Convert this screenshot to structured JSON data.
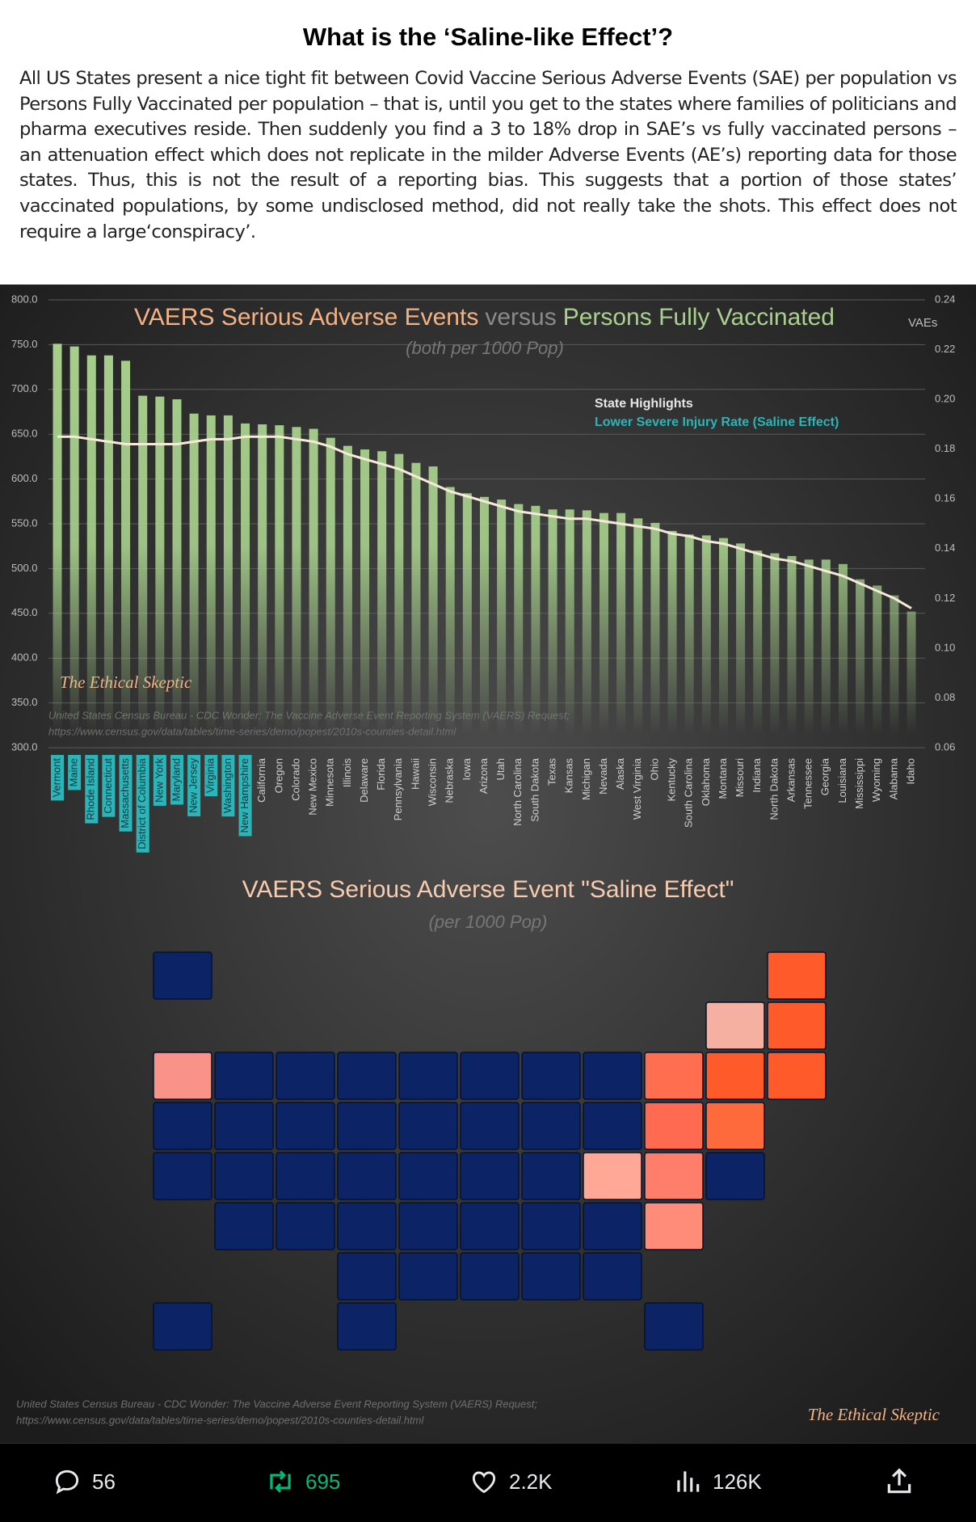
{
  "header": {
    "title": "What is the ‘Saline-like Effect’?",
    "body": "All US States present a nice tight fit between Covid Vaccine Serious Adverse Events (SAE) per population vs Persons Fully Vaccinated per population – that is, until you get to the states where families of politicians and pharma executives reside. Then suddenly you find a 3 to 18% drop in SAE’s vs fully vaccinated persons – an attenuation effect which does not replicate in the milder Adverse Events (AE’s) reporting data for those states. Thus, this is not the result of a reporting bias. This suggests that a portion of those states’ vaccinated populations, by some undisclosed method, did not really take the shots. This effect does not require a large‘conspiracy’."
  },
  "chart_data": [
    {
      "type": "bar_line",
      "title": [
        {
          "text": "VAERS Serious Adverse Events",
          "color": "#f4b183"
        },
        {
          "text": "versus",
          "color": "#8a8a8a"
        },
        {
          "text": "Persons Fully Vaccinated",
          "color": "#a9d18e"
        }
      ],
      "subtitle": "(both per 1000 Pop)",
      "y2label": "VAEs",
      "legend": {
        "title": "State Highlights",
        "entry": "Lower Severe Injury Rate (Saline Effect)"
      },
      "watermark": "The Ethical Skeptic",
      "source": [
        "United States Census Bureau - CDC Wonder: The Vaccine Adverse Event Reporting System (VAERS) Request;",
        "https://www.census.gov/data/tables/time-series/demo/popest/2010s-counties-detail.html"
      ],
      "categories": [
        "Vermont",
        "Maine",
        "Rhode Island",
        "Connecticut",
        "Massachusetts",
        "District of Columbia",
        "New York",
        "Maryland",
        "New Jersey",
        "Virginia",
        "Washington",
        "New Hampshire",
        "California",
        "Oregon",
        "Colorado",
        "New Mexico",
        "Minnesota",
        "Illinois",
        "Delaware",
        "Florida",
        "Pennsylvania",
        "Hawaii",
        "Wisconsin",
        "Nebraska",
        "Iowa",
        "Arizona",
        "Utah",
        "North Carolina",
        "South Dakota",
        "Texas",
        "Kansas",
        "Michigan",
        "Nevada",
        "Alaska",
        "West Virginia",
        "Ohio",
        "Kentucky",
        "South Carolina",
        "Oklahoma",
        "Montana",
        "Missouri",
        "Indiana",
        "North Dakota",
        "Arkansas",
        "Tennessee",
        "Georgia",
        "Louisiana",
        "Mississippi",
        "Wyoming",
        "Alabama",
        "Idaho"
      ],
      "highlighted": [
        true,
        true,
        true,
        true,
        true,
        true,
        true,
        true,
        true,
        true,
        true,
        true,
        false,
        false,
        false,
        false,
        false,
        false,
        false,
        false,
        false,
        false,
        false,
        false,
        false,
        false,
        false,
        false,
        false,
        false,
        false,
        false,
        false,
        false,
        false,
        false,
        false,
        false,
        false,
        false,
        false,
        false,
        false,
        false,
        false,
        false,
        false,
        false,
        false,
        false,
        false
      ],
      "highlight_color": "#2bb5b8",
      "series": [
        {
          "color": "#a9d18e",
          "values": [
            751,
            748,
            738,
            738,
            732,
            693,
            692,
            689,
            673,
            671,
            671,
            662,
            661,
            660,
            658,
            656,
            646,
            637,
            633,
            631,
            628,
            618,
            614,
            591,
            584,
            580,
            577,
            572,
            570,
            566,
            566,
            565,
            562,
            562,
            556,
            551,
            542,
            538,
            537,
            534,
            528,
            520,
            517,
            514,
            510,
            510,
            505,
            488,
            481,
            470,
            452
          ]
        },
        {
          "color": "#f5ead8",
          "axis": "y2",
          "values": [
            0.185,
            0.185,
            0.184,
            0.183,
            0.182,
            0.182,
            0.182,
            0.182,
            0.183,
            0.184,
            0.184,
            0.185,
            0.185,
            0.185,
            0.184,
            0.183,
            0.181,
            0.178,
            0.176,
            0.174,
            0.172,
            0.169,
            0.166,
            0.163,
            0.161,
            0.159,
            0.157,
            0.155,
            0.154,
            0.153,
            0.152,
            0.152,
            0.151,
            0.15,
            0.149,
            0.148,
            0.146,
            0.145,
            0.143,
            0.142,
            0.14,
            0.138,
            0.136,
            0.135,
            0.133,
            0.131,
            0.129,
            0.126,
            0.123,
            0.12,
            0.116
          ]
        }
      ],
      "ylim": [
        300,
        800
      ],
      "yticks": [
        {
          "value": 300,
          "label": "300.0"
        },
        {
          "value": 350,
          "label": "350.0"
        },
        {
          "value": 400,
          "label": "400.0"
        },
        {
          "value": 450,
          "label": "450.0"
        },
        {
          "value": 500,
          "label": "500.0"
        },
        {
          "value": 550,
          "label": "550.0"
        },
        {
          "value": 600,
          "label": "600.0"
        },
        {
          "value": 650,
          "label": "650.0"
        },
        {
          "value": 700,
          "label": "700.0"
        },
        {
          "value": 750,
          "label": "750.0"
        },
        {
          "value": 800,
          "label": "800.0"
        }
      ],
      "y2lim": [
        0.06,
        0.24
      ],
      "y2ticks": [
        0.06,
        0.08,
        {
          "value": 0.1,
          "label": "0.10"
        },
        0.12,
        0.14,
        0.16,
        0.18,
        {
          "value": 0.2,
          "label": "0.20"
        },
        0.22,
        0.24
      ],
      "grid": true
    },
    {
      "type": "map",
      "title": "VAERS Serious Adverse Event \"Saline Effect\"",
      "subtitle": "(per 1000 Pop)",
      "watermark": "The Ethical Skeptic",
      "source": [
        "United States Census Bureau - CDC Wonder: The Vaccine Adverse Event Reporting System (VAERS) Request;",
        "https://www.census.gov/data/tables/time-series/demo/popest/2010s-counties-detail.html"
      ],
      "colors": [
        "#f6b0a2",
        "#ff5a2a",
        "#ff5a2a",
        "#ff6a3d",
        "#ff5a2a",
        "#ff8c78",
        "#ff6f4f",
        "#ff7d6a",
        "#ff6a50",
        "#ffa898",
        "#f99389",
        "#ff5a2a",
        "#0c2466",
        "#0c2466",
        "#0c2466",
        "#0c2466",
        "#0c2466",
        "#0c2466",
        "#0c2466",
        "#0c2466",
        "#0c2466",
        "#0c2466",
        "#0c2466",
        "#0c2466",
        "#0c2466",
        "#0c2466",
        "#0c2466",
        "#0c2466",
        "#0c2466",
        "#0c2466",
        "#0c2466",
        "#0c2466",
        "#0c2466",
        "#0c2466",
        "#0c2466",
        "#0c2466",
        "#0c2466",
        "#0c2466",
        "#0c2466",
        "#0c2466",
        "#0c2466",
        "#0c2466",
        "#0c2466",
        "#0c2466",
        "#0c2466",
        "#0c2466",
        "#0c2466",
        "#0c2466",
        "#0c2466",
        "#0c2466",
        "#0c2466"
      ]
    }
  ],
  "actions": {
    "replies": "56",
    "reposts": "695",
    "likes": "2.2K",
    "views": "126K"
  }
}
